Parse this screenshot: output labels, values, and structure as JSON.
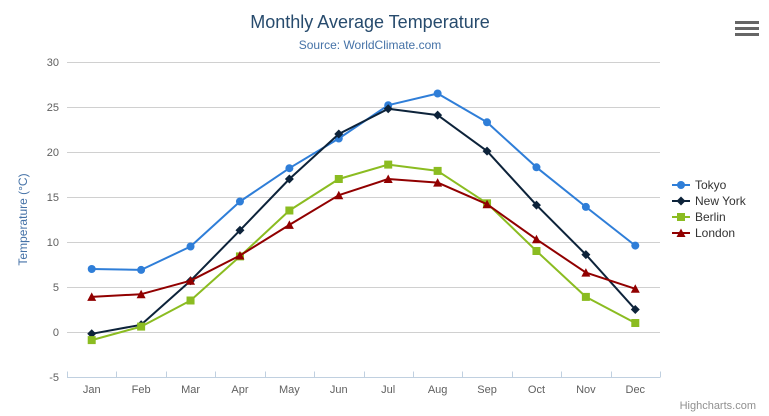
{
  "header": {
    "title": "Monthly Average Temperature",
    "subtitle": "Source: WorldClimate.com"
  },
  "credits_label": "Highcharts.com",
  "menu_icon": "hamburger-menu-icon",
  "colors": {
    "title": "#274b6d",
    "subtitle": "#4572a7",
    "axis_labels": "#606060",
    "axis_title": "#4572a7",
    "axis_line": "#c0d0e0",
    "gridline": "#d0d0d0",
    "legend_text": "#333333",
    "credits": "#909090",
    "menu_icon": "#666666",
    "background": "#ffffff"
  },
  "chart_data": {
    "type": "line",
    "title": "Monthly Average Temperature",
    "subtitle": "Source: WorldClimate.com",
    "categories": [
      "Jan",
      "Feb",
      "Mar",
      "Apr",
      "May",
      "Jun",
      "Jul",
      "Aug",
      "Sep",
      "Oct",
      "Nov",
      "Dec"
    ],
    "series": [
      {
        "name": "Tokyo",
        "color": "#2f7ed8",
        "marker": "circle",
        "values": [
          7.0,
          6.9,
          9.5,
          14.5,
          18.2,
          21.5,
          25.2,
          26.5,
          23.3,
          18.3,
          13.9,
          9.6
        ]
      },
      {
        "name": "New York",
        "color": "#0d233a",
        "marker": "diamond",
        "values": [
          -0.2,
          0.8,
          5.7,
          11.3,
          17.0,
          22.0,
          24.8,
          24.1,
          20.1,
          14.1,
          8.6,
          2.5
        ]
      },
      {
        "name": "Berlin",
        "color": "#8bbc21",
        "marker": "square",
        "values": [
          -0.9,
          0.6,
          3.5,
          8.4,
          13.5,
          17.0,
          18.6,
          17.9,
          14.3,
          9.0,
          3.9,
          1.0
        ]
      },
      {
        "name": "London",
        "color": "#910000",
        "marker": "triangle",
        "values": [
          3.9,
          4.2,
          5.7,
          8.5,
          11.9,
          15.2,
          17.0,
          16.6,
          14.2,
          10.3,
          6.6,
          4.8
        ]
      }
    ],
    "xlabel": "",
    "ylabel": "Temperature (°C)",
    "ylim": [
      -5,
      30
    ],
    "yticks": [
      -5,
      0,
      5,
      10,
      15,
      20,
      25,
      30
    ],
    "grid": true,
    "legend_position": "right"
  }
}
